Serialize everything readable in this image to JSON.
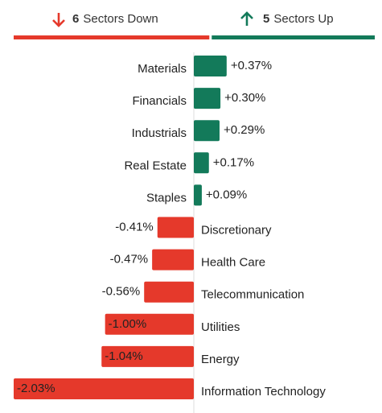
{
  "summary": {
    "down": {
      "count": 6,
      "label": "Sectors Down",
      "color": "#e5392b"
    },
    "up": {
      "count": 5,
      "label": "Sectors Up",
      "color": "#137a5a"
    }
  },
  "chart_data": {
    "type": "bar",
    "orientation": "horizontal",
    "categories": [
      "Materials",
      "Financials",
      "Industrials",
      "Real Estate",
      "Staples",
      "Discretionary",
      "Health Care",
      "Telecommunication",
      "Utilities",
      "Energy",
      "Information Technology"
    ],
    "values": [
      0.37,
      0.3,
      0.29,
      0.17,
      0.09,
      -0.41,
      -0.47,
      -0.56,
      -1.0,
      -1.04,
      -2.03
    ],
    "value_labels": [
      "+0.37%",
      "+0.30%",
      "+0.29%",
      "+0.17%",
      "+0.09%",
      "-0.41%",
      "-0.47%",
      "-0.56%",
      "-1.00%",
      "-1.04%",
      "-2.03%"
    ],
    "colors": {
      "positive": "#137a5a",
      "negative": "#e5392b",
      "category": "#2a62b8"
    }
  }
}
